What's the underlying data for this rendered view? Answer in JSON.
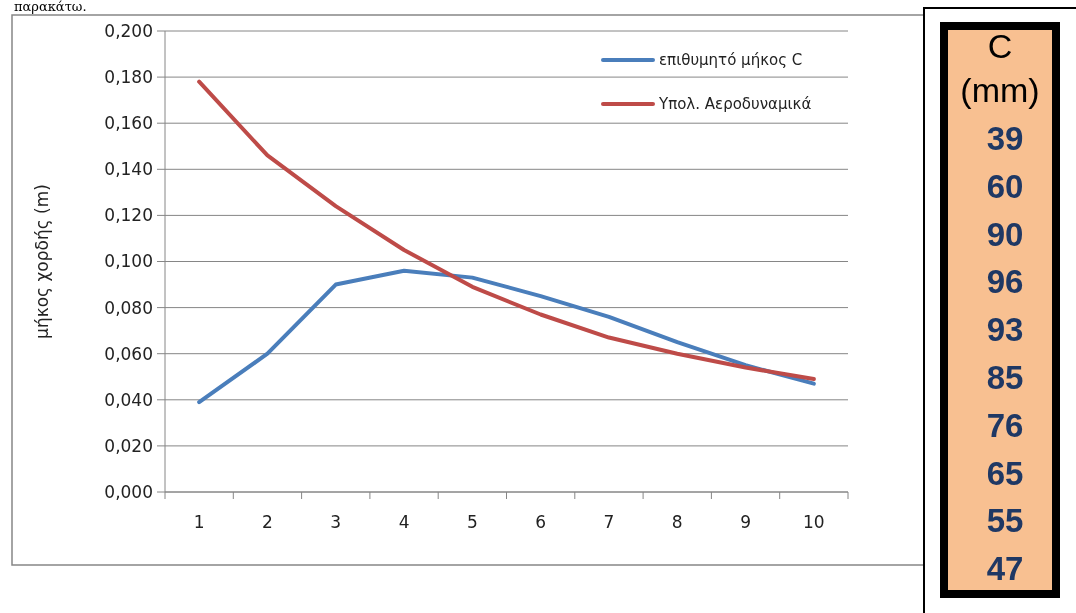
{
  "chart_data": [
    {
      "type": "line",
      "ylabel": "μήκος χορδής (m)",
      "categories": [
        "1",
        "2",
        "3",
        "4",
        "5",
        "6",
        "7",
        "8",
        "9",
        "10"
      ],
      "series": [
        {
          "name": "επιθυμητό μήκος C",
          "color": "#4a7ebb",
          "values": [
            0.039,
            0.06,
            0.09,
            0.096,
            0.093,
            0.085,
            0.076,
            0.065,
            0.055,
            0.047
          ]
        },
        {
          "name": "Υπολ. Αεροδυναμικά",
          "color": "#be4b48",
          "values": [
            0.178,
            0.146,
            0.124,
            0.105,
            0.089,
            0.077,
            0.067,
            0.06,
            0.054,
            0.049
          ]
        }
      ],
      "ylim": [
        0,
        0.2
      ],
      "yticks": [
        {
          "value": 0,
          "label": "0,000"
        },
        {
          "value": 0.02,
          "label": "0,020"
        },
        {
          "value": 0.04,
          "label": "0,040"
        },
        {
          "value": 0.06,
          "label": "0,060"
        },
        {
          "value": 0.08,
          "label": "0,080"
        },
        {
          "value": 0.1,
          "label": "0,100"
        },
        {
          "value": 0.12,
          "label": "0,120"
        },
        {
          "value": 0.14,
          "label": "0,140"
        },
        {
          "value": 0.16,
          "label": "0,160"
        },
        {
          "value": 0.18,
          "label": "0,180"
        },
        {
          "value": 0.2,
          "label": "0,200"
        }
      ],
      "grid": "y",
      "legend": "top right",
      "marker": "none",
      "line_style": "solid",
      "annotations": [
        "παρακάτω."
      ]
    },
    {
      "type": "other",
      "title": "C (mm)",
      "annotations": [
        "39",
        "60",
        "90",
        "96",
        "93",
        "85",
        "76",
        "65",
        "55",
        "47"
      ]
    }
  ]
}
